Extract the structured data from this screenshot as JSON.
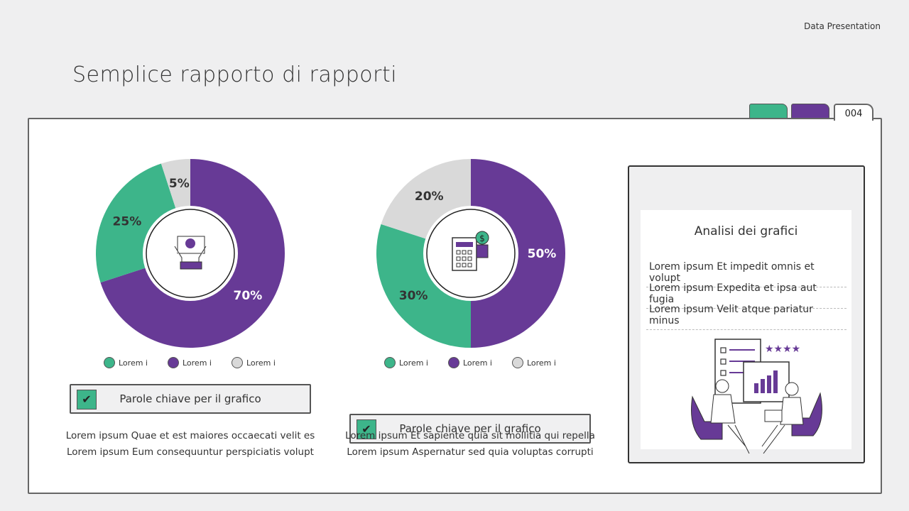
{
  "header": {
    "brand": "Data Presentation",
    "title": "Semplice rapporto di rapporti",
    "page_number": "004"
  },
  "colors": {
    "green": "#3db58a",
    "purple": "#673a96",
    "gray": "#d9d9d9"
  },
  "chart_data": [
    {
      "type": "pie",
      "style": "donut",
      "icon": "money-hands-icon",
      "slices": [
        {
          "label": "70%",
          "value": 70,
          "color": "#673a96"
        },
        {
          "label": "25%",
          "value": 25,
          "color": "#3db58a"
        },
        {
          "label": "5%",
          "value": 5,
          "color": "#d9d9d9"
        }
      ],
      "legend": [
        "Lorem i",
        "Lorem i",
        "Lorem i"
      ],
      "legend_placement": "bottom"
    },
    {
      "type": "pie",
      "style": "donut",
      "icon": "calculator-coins-icon",
      "slices": [
        {
          "label": "50%",
          "value": 50,
          "color": "#673a96"
        },
        {
          "label": "30%",
          "value": 30,
          "color": "#3db58a"
        },
        {
          "label": "20%",
          "value": 20,
          "color": "#d9d9d9"
        }
      ],
      "legend": [
        "Lorem i",
        "Lorem i",
        "Lorem i"
      ],
      "legend_placement": "bottom"
    }
  ],
  "cards": [
    {
      "keyword": "Parole chiave per il grafico",
      "lines": [
        "Lorem ipsum Quae et est maiores occaecati velit es",
        "Lorem ipsum Eum consequuntur perspiciatis volupt"
      ]
    },
    {
      "keyword": "Parole chiave per il grafico",
      "lines": [
        "Lorem ipsum Et sapiente quia sit mollitia qui repella",
        "Lorem ipsum Aspernatur sed quia voluptas corrupti"
      ]
    }
  ],
  "panel": {
    "title": "Analisi dei grafici",
    "items": [
      "Lorem ipsum Et impedit omnis et volupt",
      "Lorem ipsum Expedita et ipsa aut fugia",
      "Lorem ipsum Velit atque pariatur minus"
    ]
  }
}
